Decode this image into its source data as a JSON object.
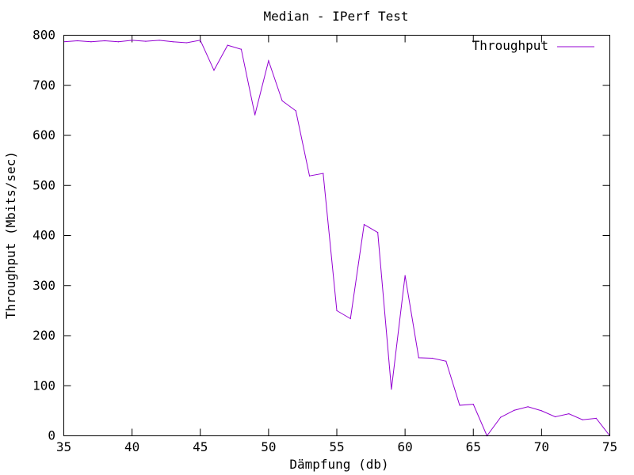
{
  "chart_data": {
    "type": "line",
    "title": "Median - IPerf Test",
    "xlabel": "Dämpfung (db)",
    "ylabel": "Throughput (Mbits/sec)",
    "xlim": [
      35,
      75
    ],
    "ylim": [
      0,
      800
    ],
    "xticks": [
      35,
      40,
      45,
      50,
      55,
      60,
      65,
      70,
      75
    ],
    "yticks": [
      0,
      100,
      200,
      300,
      400,
      500,
      600,
      700,
      800
    ],
    "grid": false,
    "legend_position": "top-right",
    "series": [
      {
        "name": "Throughput",
        "color": "#9400d3",
        "x": [
          35,
          36,
          37,
          38,
          39,
          40,
          41,
          42,
          43,
          44,
          45,
          46,
          47,
          48,
          49,
          50,
          51,
          52,
          53,
          54,
          55,
          56,
          57,
          58,
          59,
          60,
          61,
          62,
          63,
          64,
          65,
          66,
          67,
          68,
          69,
          70,
          71,
          72,
          73,
          74,
          75
        ],
        "y": [
          787,
          789,
          787,
          789,
          787,
          790,
          788,
          790,
          787,
          785,
          790,
          730,
          780,
          772,
          641,
          749,
          669,
          649,
          519,
          524,
          250,
          234,
          422,
          406,
          93,
          320,
          156,
          155,
          149,
          61,
          63,
          0,
          37,
          51,
          58,
          50,
          38,
          44,
          32,
          35,
          0
        ]
      }
    ]
  }
}
